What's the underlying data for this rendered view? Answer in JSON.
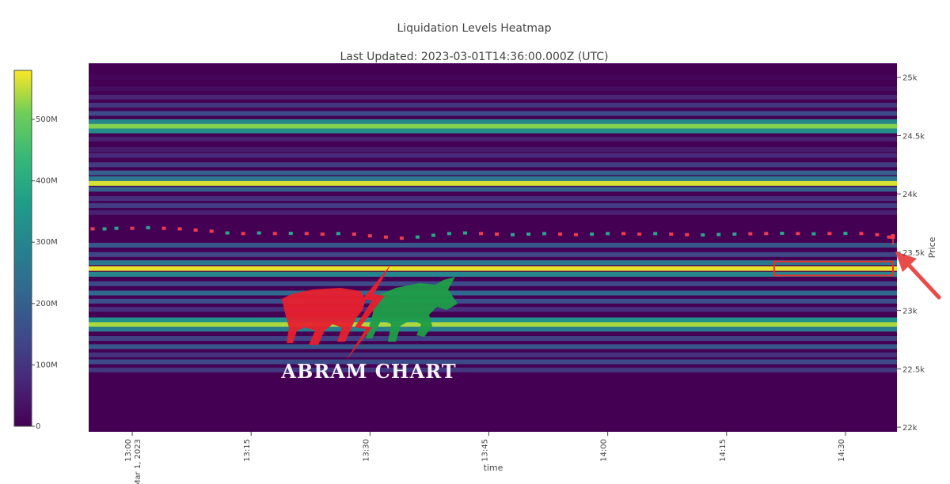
{
  "chart_data": {
    "type": "heatmap",
    "title": "Liquidation Levels Heatmap",
    "subtitle": "Last Updated: 2023-03-01T14:36:00.000Z (UTC)",
    "xlabel": "time",
    "ylabel": "Price",
    "x_ticks": [
      {
        "value": "13:00",
        "sub": "Mar 1, 2023",
        "t": 0
      },
      {
        "value": "13:15",
        "t": 15
      },
      {
        "value": "13:30",
        "t": 30
      },
      {
        "value": "13:45",
        "t": 45
      },
      {
        "value": "14:00",
        "t": 60
      },
      {
        "value": "14:15",
        "t": 75
      },
      {
        "value": "14:30",
        "t": 90
      }
    ],
    "x_range_minutes": [
      -5.5,
      96.5
    ],
    "y_ticks": [
      {
        "label": "22k",
        "value": 22000
      },
      {
        "label": "22.5k",
        "value": 22500
      },
      {
        "label": "23k",
        "value": 23000
      },
      {
        "label": "23.5k",
        "value": 23500
      },
      {
        "label": "24k",
        "value": 24000
      },
      {
        "label": "24.5k",
        "value": 24500
      },
      {
        "label": "25k",
        "value": 25000
      }
    ],
    "ylim": [
      21960,
      25120
    ],
    "colorscale": "Viridis",
    "colorbar": {
      "range": [
        0,
        580
      ],
      "ticks": [
        {
          "label": "0",
          "value": 0
        },
        {
          "label": "100M",
          "value": 100
        },
        {
          "label": "200M",
          "value": 200
        },
        {
          "label": "300M",
          "value": 300
        },
        {
          "label": "400M",
          "value": 400
        },
        {
          "label": "500M",
          "value": 500
        }
      ]
    },
    "liquidation_bands": [
      {
        "price": 25000,
        "value": 10
      },
      {
        "price": 24900,
        "value": 25
      },
      {
        "price": 24830,
        "value": 70
      },
      {
        "price": 24760,
        "value": 110
      },
      {
        "price": 24690,
        "value": 150
      },
      {
        "price": 24620,
        "value": 300
      },
      {
        "price": 24580,
        "value": 520
      },
      {
        "price": 24540,
        "value": 320
      },
      {
        "price": 24470,
        "value": 60
      },
      {
        "price": 24380,
        "value": 50
      },
      {
        "price": 24330,
        "value": 80
      },
      {
        "price": 24250,
        "value": 120
      },
      {
        "price": 24180,
        "value": 200
      },
      {
        "price": 24130,
        "value": 260
      },
      {
        "price": 24090,
        "value": 560
      },
      {
        "price": 24040,
        "value": 200
      },
      {
        "price": 23960,
        "value": 90
      },
      {
        "price": 23900,
        "value": 120
      },
      {
        "price": 23840,
        "value": 60
      },
      {
        "price": 23560,
        "value": 180
      },
      {
        "price": 23480,
        "value": 140
      },
      {
        "price": 23410,
        "value": 260
      },
      {
        "price": 23360,
        "value": 570
      },
      {
        "price": 23310,
        "value": 300
      },
      {
        "price": 23230,
        "value": 150
      },
      {
        "price": 23150,
        "value": 220
      },
      {
        "price": 23080,
        "value": 160
      },
      {
        "price": 23010,
        "value": 90
      },
      {
        "price": 22920,
        "value": 330
      },
      {
        "price": 22880,
        "value": 540
      },
      {
        "price": 22840,
        "value": 280
      },
      {
        "price": 22760,
        "value": 130
      },
      {
        "price": 22690,
        "value": 180
      },
      {
        "price": 22620,
        "value": 100
      },
      {
        "price": 22560,
        "value": 150
      },
      {
        "price": 22490,
        "value": 110
      }
    ],
    "price_candles": [
      {
        "t": -5,
        "p": 23700,
        "up": false
      },
      {
        "t": -3.5,
        "p": 23700,
        "up": true
      },
      {
        "t": -2,
        "p": 23705,
        "up": true
      },
      {
        "t": 0,
        "p": 23705,
        "up": false
      },
      {
        "t": 2,
        "p": 23710,
        "up": true
      },
      {
        "t": 4,
        "p": 23705,
        "up": false
      },
      {
        "t": 6,
        "p": 23700,
        "up": false
      },
      {
        "t": 8,
        "p": 23690,
        "up": false
      },
      {
        "t": 10,
        "p": 23680,
        "up": false
      },
      {
        "t": 12,
        "p": 23665,
        "up": true
      },
      {
        "t": 14,
        "p": 23660,
        "up": false
      },
      {
        "t": 16,
        "p": 23665,
        "up": true
      },
      {
        "t": 18,
        "p": 23660,
        "up": false
      },
      {
        "t": 20,
        "p": 23662,
        "up": true
      },
      {
        "t": 22,
        "p": 23660,
        "up": false
      },
      {
        "t": 24,
        "p": 23655,
        "up": false
      },
      {
        "t": 26,
        "p": 23660,
        "up": true
      },
      {
        "t": 28,
        "p": 23655,
        "up": false
      },
      {
        "t": 30,
        "p": 23640,
        "up": false
      },
      {
        "t": 32,
        "p": 23630,
        "up": false
      },
      {
        "t": 34,
        "p": 23620,
        "up": false
      },
      {
        "t": 36,
        "p": 23630,
        "up": true
      },
      {
        "t": 38,
        "p": 23645,
        "up": true
      },
      {
        "t": 40,
        "p": 23660,
        "up": true
      },
      {
        "t": 42,
        "p": 23665,
        "up": true
      },
      {
        "t": 44,
        "p": 23660,
        "up": false
      },
      {
        "t": 46,
        "p": 23655,
        "up": false
      },
      {
        "t": 48,
        "p": 23650,
        "up": true
      },
      {
        "t": 50,
        "p": 23655,
        "up": true
      },
      {
        "t": 52,
        "p": 23660,
        "up": true
      },
      {
        "t": 54,
        "p": 23655,
        "up": false
      },
      {
        "t": 56,
        "p": 23650,
        "up": false
      },
      {
        "t": 58,
        "p": 23655,
        "up": true
      },
      {
        "t": 60,
        "p": 23660,
        "up": true
      },
      {
        "t": 62,
        "p": 23660,
        "up": false
      },
      {
        "t": 64,
        "p": 23655,
        "up": false
      },
      {
        "t": 66,
        "p": 23660,
        "up": true
      },
      {
        "t": 68,
        "p": 23655,
        "up": false
      },
      {
        "t": 70,
        "p": 23650,
        "up": false
      },
      {
        "t": 72,
        "p": 23648,
        "up": true
      },
      {
        "t": 74,
        "p": 23652,
        "up": true
      },
      {
        "t": 76,
        "p": 23655,
        "up": true
      },
      {
        "t": 78,
        "p": 23658,
        "up": false
      },
      {
        "t": 80,
        "p": 23660,
        "up": false
      },
      {
        "t": 82,
        "p": 23662,
        "up": true
      },
      {
        "t": 84,
        "p": 23660,
        "up": false
      },
      {
        "t": 86,
        "p": 23658,
        "up": true
      },
      {
        "t": 88,
        "p": 23660,
        "up": false
      },
      {
        "t": 90,
        "p": 23662,
        "up": true
      },
      {
        "t": 92,
        "p": 23660,
        "up": false
      },
      {
        "t": 94,
        "p": 23650,
        "up": false
      },
      {
        "t": 95.5,
        "p": 23630,
        "up": false
      }
    ],
    "highlight": {
      "t_start": 81,
      "t_end": 96,
      "price_low": 23300,
      "price_high": 23420
    },
    "current_price": {
      "t": 96,
      "p": 23560
    },
    "grid": false
  },
  "watermark": {
    "brand": "ABRAM CHART"
  },
  "colors": {
    "candle_up": "#2ca58d",
    "candle_down": "#ef3c4e",
    "highlight": "#e8332e",
    "arrow": "#e94b48",
    "plot_bg": "#440154",
    "bear": "#e8202f",
    "bull": "#1f9e48"
  }
}
